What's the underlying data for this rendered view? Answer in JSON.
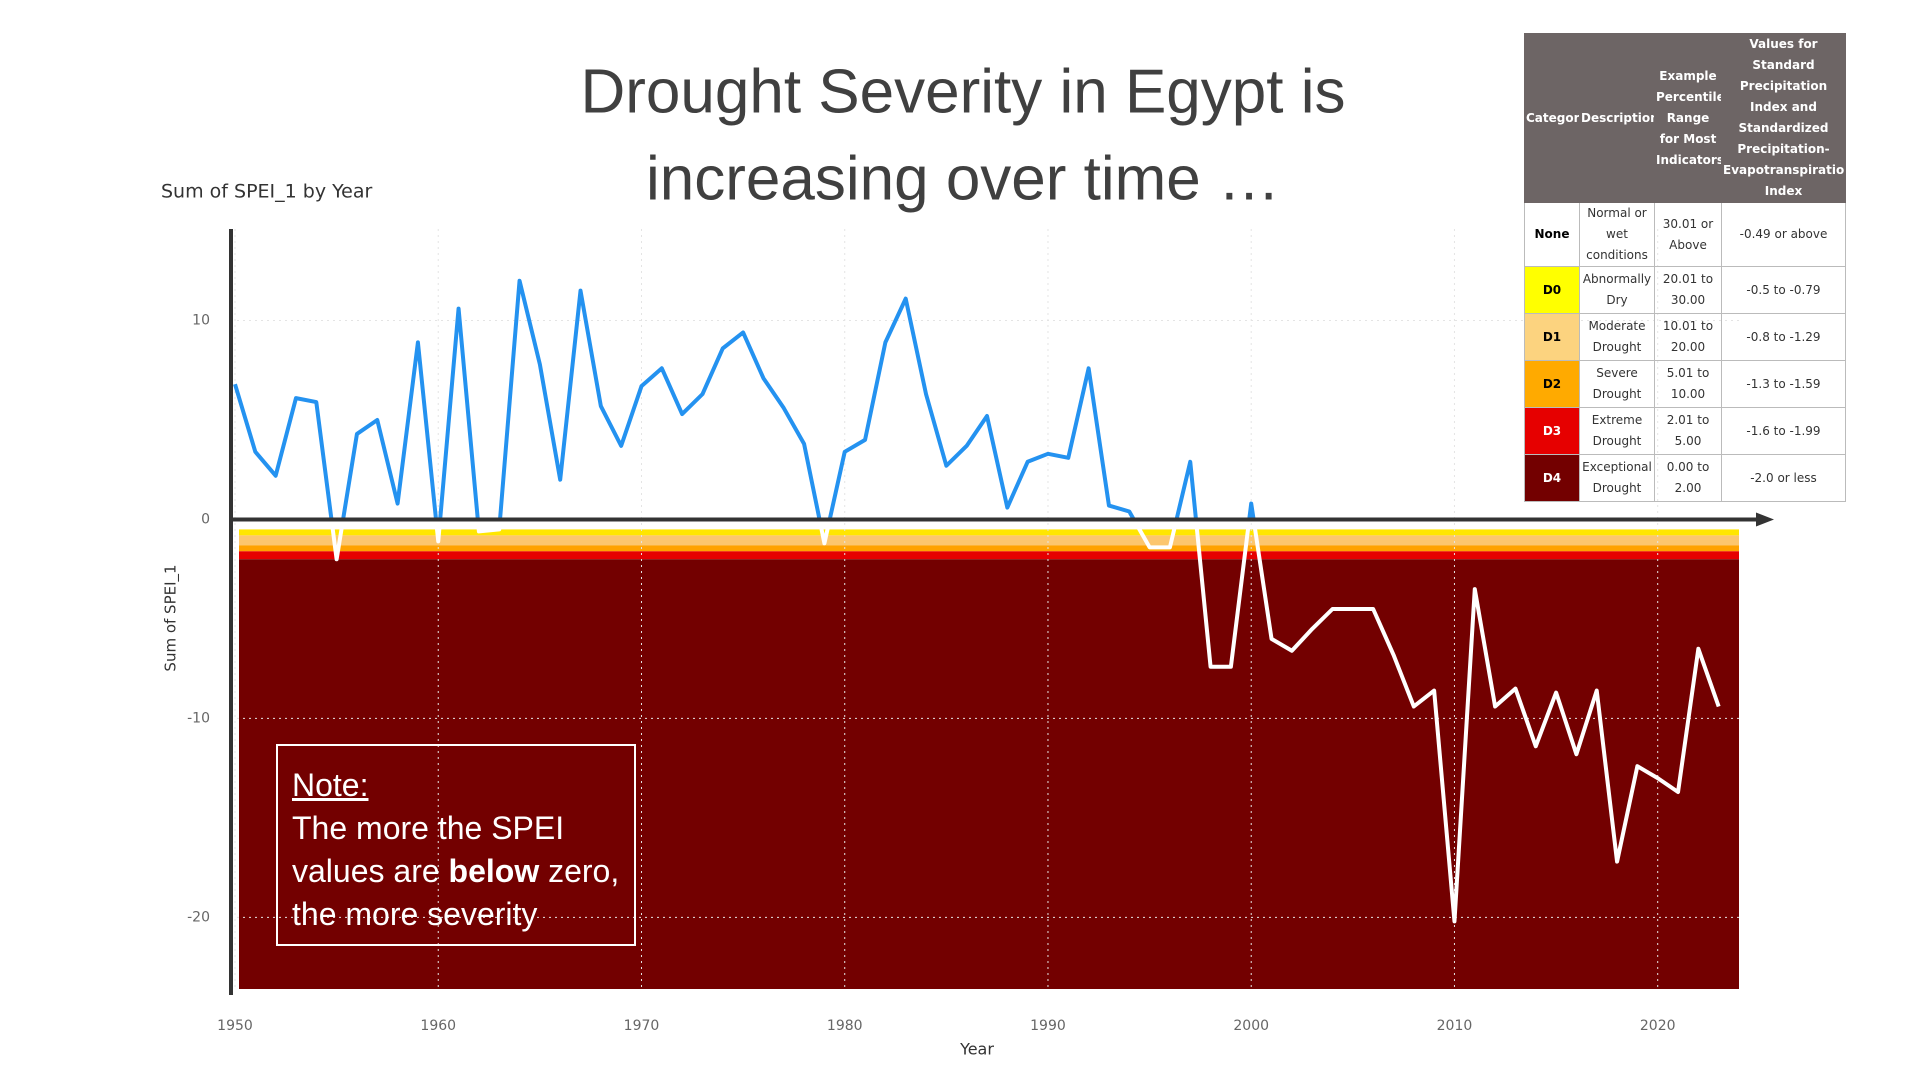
{
  "chart_data": {
    "type": "line",
    "title_line1": "Drought Severity in Egypt is",
    "title_line2": "increasing over time …",
    "subtitle": "Sum of SPEI_1 by Year",
    "x_label": "Year",
    "y_label": "Sum of SPEI_1",
    "x": [
      1950,
      1951,
      1952,
      1953,
      1954,
      1955,
      1956,
      1957,
      1958,
      1959,
      1960,
      1961,
      1962,
      1963,
      1964,
      1965,
      1966,
      1967,
      1968,
      1969,
      1970,
      1971,
      1972,
      1973,
      1974,
      1975,
      1976,
      1977,
      1978,
      1979,
      1980,
      1981,
      1982,
      1983,
      1984,
      1985,
      1986,
      1987,
      1988,
      1989,
      1990,
      1991,
      1992,
      1993,
      1994,
      1995,
      1996,
      1997,
      1998,
      1999,
      2000,
      2001,
      2002,
      2003,
      2004,
      2005,
      2006,
      2007,
      2008,
      2009,
      2010,
      2011,
      2012,
      2013,
      2014,
      2015,
      2016,
      2017,
      2018,
      2019,
      2020,
      2021,
      2022,
      2023
    ],
    "series": [
      {
        "name": "Sum of SPEI_1",
        "color_above": "#2492f0",
        "color_below": "#ffffff",
        "values": [
          6.8,
          3.4,
          2.2,
          6.1,
          5.9,
          -2.0,
          4.3,
          5.0,
          0.8,
          8.9,
          -1.1,
          10.6,
          -0.6,
          -0.5,
          12.0,
          7.8,
          2.0,
          11.5,
          5.7,
          3.7,
          6.7,
          7.6,
          5.3,
          6.3,
          8.6,
          9.4,
          7.1,
          5.6,
          3.8,
          -1.2,
          3.4,
          4.0,
          8.9,
          11.1,
          6.3,
          2.7,
          3.7,
          5.2,
          0.6,
          2.9,
          3.3,
          3.1,
          7.6,
          0.7,
          0.4,
          -1.4,
          -1.4,
          2.9,
          -7.4,
          -7.4,
          0.8,
          -6.0,
          -6.6,
          -5.5,
          -4.5,
          -4.5,
          -4.5,
          -6.8,
          -9.4,
          -8.6,
          -20.2,
          -3.5,
          -9.4,
          -8.5,
          -11.4,
          -8.7,
          -11.8,
          -8.6,
          -17.2,
          -12.4,
          -13.0,
          -13.7,
          -6.5,
          -9.4
        ]
      }
    ],
    "bands": [
      {
        "from": -0.5,
        "to": -0.8,
        "color": "#ffe600"
      },
      {
        "from": -0.8,
        "to": -1.3,
        "color": "#fcc66e"
      },
      {
        "from": -1.3,
        "to": -1.6,
        "color": "#ffa200"
      },
      {
        "from": -1.6,
        "to": -2.0,
        "color": "#e60000"
      },
      {
        "from": -2.0,
        "to": null,
        "color": "#730000"
      }
    ],
    "xlim": [
      1950,
      2024
    ],
    "ylim": [
      -23.6,
      14.6
    ],
    "xticks": [
      1950,
      1960,
      1970,
      1980,
      1990,
      2000,
      2010,
      2020
    ],
    "yticks": [
      -20,
      -10,
      0,
      10
    ],
    "grid": true
  },
  "note": {
    "heading": "Note:",
    "line1": "The more the SPEI",
    "line2_a": "values are",
    "line2_bold": "below",
    "line2_b": "zero,",
    "line3": "the more severity"
  },
  "table": {
    "header": [
      "Category",
      "Description",
      "Example Percentile Range for Most Indicators",
      "Values for Standard Precipitation Index and Standardized Precipitation-Evapotranspiration Index"
    ],
    "rows": [
      [
        "None",
        "Normal or wet conditions",
        "30.01 or Above",
        "-0.49 or above"
      ],
      [
        "D0",
        "Abnormally Dry",
        "20.01 to 30.00",
        "-0.5 to -0.79"
      ],
      [
        "D1",
        "Moderate Drought",
        "10.01 to 20.00",
        "-0.8 to -1.29"
      ],
      [
        "D2",
        "Severe Drought",
        "5.01 to 10.00",
        "-1.3 to -1.59"
      ],
      [
        "D3",
        "Extreme Drought",
        "2.01 to 5.00",
        "-1.6 to -1.99"
      ],
      [
        "D4",
        "Exceptional Drought",
        "0.00 to 2.00",
        "-2.0 or less"
      ]
    ],
    "category_colors": [
      "#ffffff",
      "#ffff00",
      "#fcd37f",
      "#ffaa00",
      "#e60000",
      "#730000"
    ]
  }
}
